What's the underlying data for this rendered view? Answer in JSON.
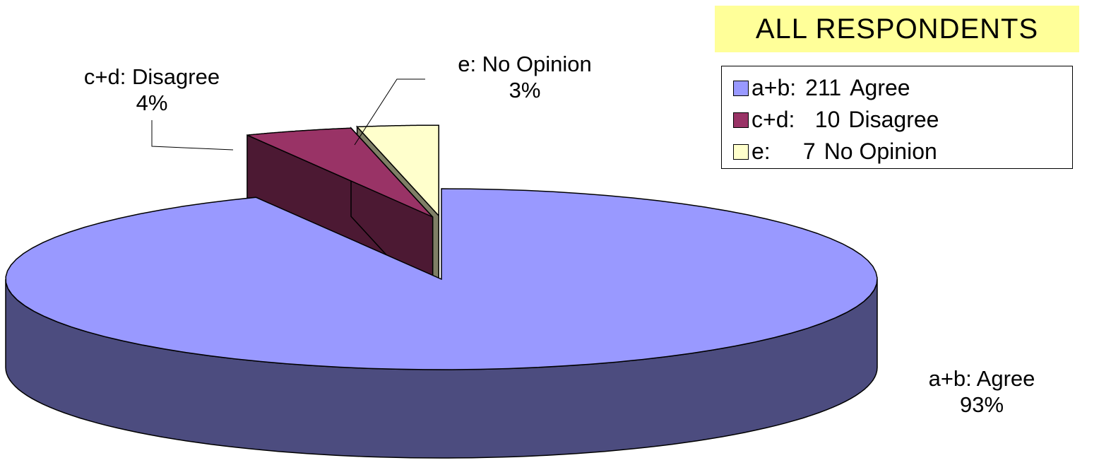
{
  "title": "ALL RESPONDENTS",
  "colors": {
    "title_background": "#ffff99",
    "agree": "#9999ff",
    "agree_side": "#4c4c7f",
    "disagree": "#993366",
    "disagree_side": "#4c1933",
    "no_opinion": "#ffffcc",
    "no_opinion_side": "#7f7f66"
  },
  "legend": [
    {
      "key": "a+b:",
      "count": "211",
      "name": "Agree",
      "color": "#9999ff"
    },
    {
      "key": "c+d:",
      "count": "10",
      "name": "Disagree",
      "color": "#993366"
    },
    {
      "key": "e:",
      "count": "7",
      "name": "No Opinion",
      "color": "#ffffcc"
    }
  ],
  "chart_data": {
    "type": "pie",
    "style": "3d-exploded",
    "title": "ALL RESPONDENTS",
    "legend_position": "top-right",
    "slices": [
      {
        "label": "a+b:  Agree",
        "count": 211,
        "percent": "93%",
        "value": 93,
        "color": "#9999ff"
      },
      {
        "label": "c+d:  Disagree",
        "count": 10,
        "percent": "4%",
        "value": 4,
        "color": "#993366"
      },
      {
        "label": "e:  No Opinion",
        "count": 7,
        "percent": "3%",
        "value": 3,
        "color": "#ffffcc"
      }
    ]
  }
}
